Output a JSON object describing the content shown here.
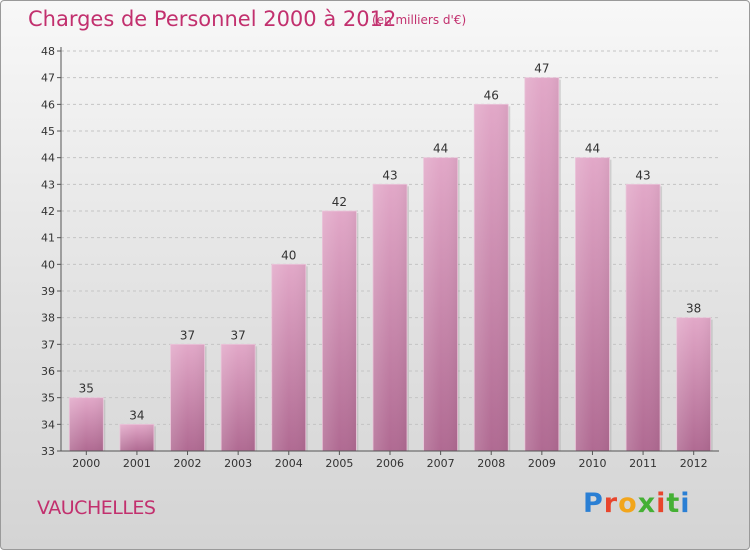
{
  "header": {
    "title": "Charges de Personnel 2000 à 2012",
    "subtitle": "(en milliers d'€)"
  },
  "footer": {
    "commune": "VAUCHELLES",
    "brand": "Proxiti",
    "brand_colors": [
      "#2a7fd4",
      "#e8452c",
      "#f2a51c",
      "#45b035",
      "#e8452c",
      "#45b035",
      "#2a7fd4"
    ]
  },
  "colors": {
    "bar": "#c97aa6",
    "title": "#c2306e"
  },
  "chart_data": {
    "type": "bar",
    "categories": [
      "2000",
      "2001",
      "2002",
      "2003",
      "2004",
      "2005",
      "2006",
      "2007",
      "2008",
      "2009",
      "2010",
      "2011",
      "2012"
    ],
    "values": [
      35,
      34,
      37,
      37,
      40,
      42,
      43,
      44,
      46,
      47,
      44,
      43,
      38
    ],
    "ylim": [
      33,
      48
    ],
    "yticks": [
      33,
      34,
      35,
      36,
      37,
      38,
      39,
      40,
      41,
      42,
      43,
      44,
      45,
      46,
      47,
      48
    ],
    "grid": true,
    "data_labels": true
  }
}
